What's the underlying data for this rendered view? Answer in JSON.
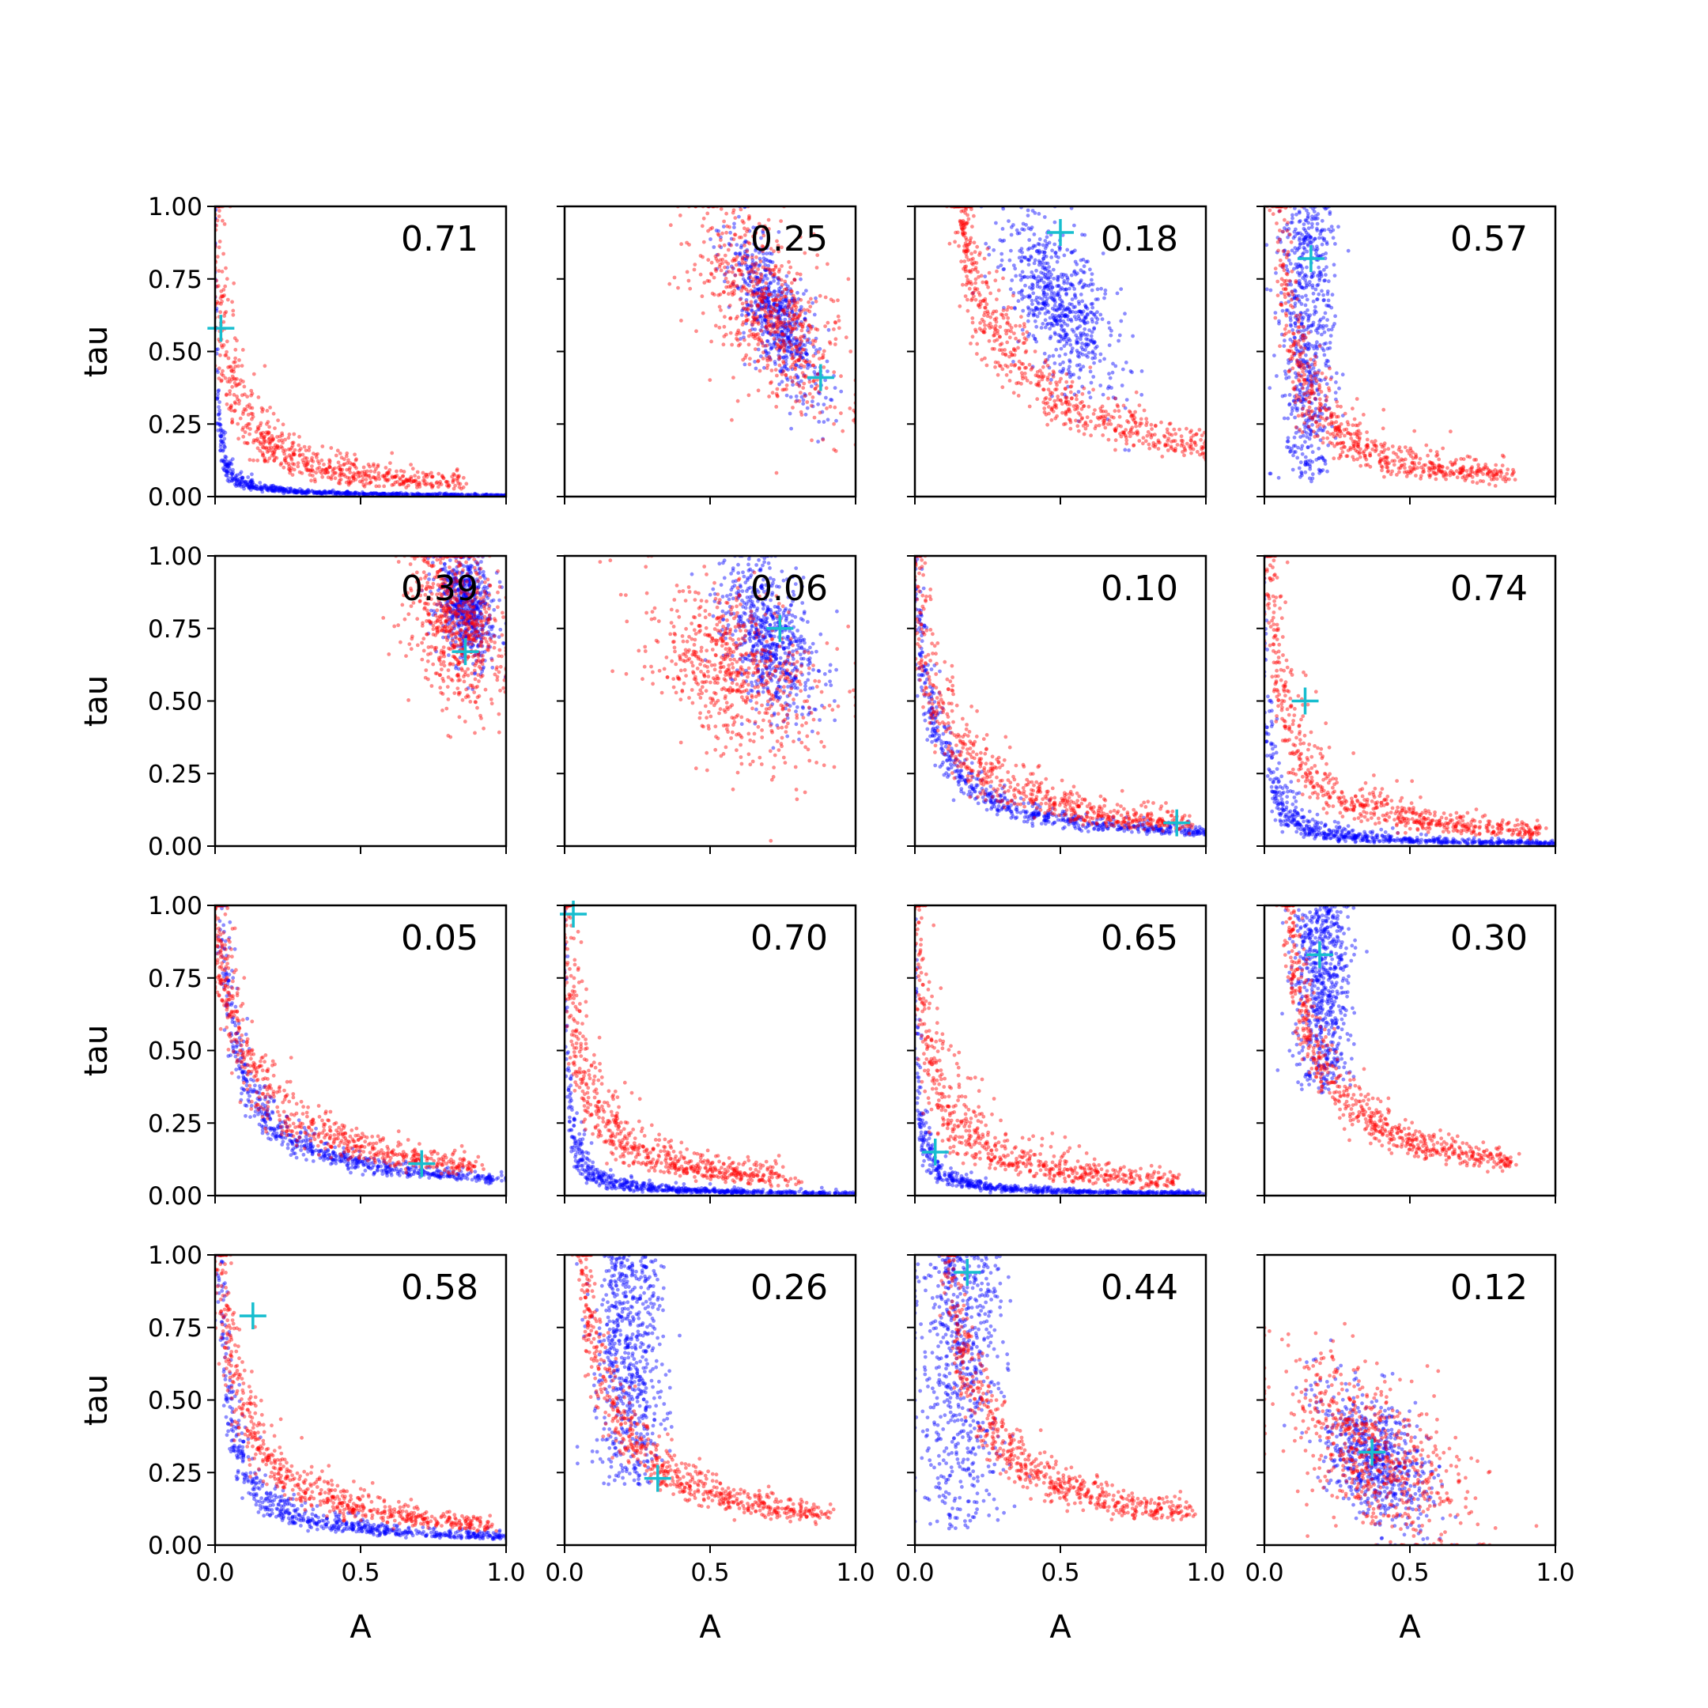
{
  "chart_data": {
    "type": "scatter",
    "layout": "4x4 grid",
    "xlabel": "A",
    "ylabel": "tau",
    "xlim": [
      0.0,
      1.0
    ],
    "ylim": [
      0.0,
      1.0
    ],
    "xticks": [
      "0.0",
      "0.5",
      "1.0"
    ],
    "yticks": [
      "0.00",
      "0.25",
      "0.50",
      "0.75",
      "1.00"
    ],
    "grid": false,
    "colors": {
      "series_1": "#0000ff",
      "series_2": "#ff0000",
      "marker": "#17becf"
    },
    "panels": [
      {
        "annotation": "0.71",
        "marker": {
          "x": 0.02,
          "y": 0.58
        },
        "series": [
          {
            "color": "#0000ff",
            "shape": "hyperbolic",
            "a": 0.005,
            "x0": 0.0,
            "xmax": 1.0,
            "spread": 0.5
          },
          {
            "color": "#ff0000",
            "shape": "hyperbolic",
            "a": 0.04,
            "x0": 0.0,
            "xmax": 0.85,
            "spread": 0.6
          }
        ]
      },
      {
        "annotation": "0.25",
        "marker": {
          "x": 0.88,
          "y": 0.41
        },
        "series": [
          {
            "color": "#0000ff",
            "shape": "blob",
            "cx": 0.72,
            "cy": 0.63,
            "sx": 0.08,
            "sy": 0.15,
            "rho": -0.75
          },
          {
            "color": "#ff0000",
            "shape": "blob",
            "cx": 0.7,
            "cy": 0.65,
            "sx": 0.13,
            "sy": 0.18,
            "rho": -0.6
          }
        ]
      },
      {
        "annotation": "0.18",
        "marker": {
          "x": 0.5,
          "y": 0.91
        },
        "series": [
          {
            "color": "#0000ff",
            "shape": "blob",
            "cx": 0.5,
            "cy": 0.65,
            "sx": 0.1,
            "sy": 0.15,
            "rho": -0.55
          },
          {
            "color": "#ff0000",
            "shape": "hyperbolic",
            "a": 0.18,
            "x0": 0.15,
            "xmax": 1.0,
            "spread": 0.3
          }
        ]
      },
      {
        "annotation": "0.57",
        "marker": {
          "x": 0.16,
          "y": 0.82
        },
        "series": [
          {
            "color": "#0000ff",
            "shape": "column",
            "cx": 0.15,
            "sx": 0.05,
            "ymin": 0.05,
            "ymax": 1.0
          },
          {
            "color": "#ff0000",
            "shape": "hyperbolic",
            "a": 0.06,
            "x0": 0.05,
            "xmax": 0.85,
            "spread": 0.5
          }
        ]
      },
      {
        "annotation": "0.39",
        "marker": {
          "x": 0.86,
          "y": 0.67
        },
        "series": [
          {
            "color": "#0000ff",
            "shape": "blob",
            "cx": 0.86,
            "cy": 0.83,
            "sx": 0.05,
            "sy": 0.1,
            "rho": -0.3
          },
          {
            "color": "#ff0000",
            "shape": "blob",
            "cx": 0.83,
            "cy": 0.78,
            "sx": 0.08,
            "sy": 0.15,
            "rho": -0.3
          }
        ]
      },
      {
        "annotation": "0.06",
        "marker": {
          "x": 0.74,
          "y": 0.75
        },
        "series": [
          {
            "color": "#0000ff",
            "shape": "blob",
            "cx": 0.7,
            "cy": 0.72,
            "sx": 0.08,
            "sy": 0.13,
            "rho": -0.4
          },
          {
            "color": "#ff0000",
            "shape": "blob",
            "cx": 0.6,
            "cy": 0.6,
            "sx": 0.15,
            "sy": 0.15,
            "rho": -0.4
          }
        ]
      },
      {
        "annotation": "0.10",
        "marker": {
          "x": 0.9,
          "y": 0.08
        },
        "series": [
          {
            "color": "#0000ff",
            "shape": "hyperbolic",
            "a": 0.05,
            "x0": 0.0,
            "xmax": 1.0,
            "spread": 0.35
          },
          {
            "color": "#ff0000",
            "shape": "hyperbolic",
            "a": 0.08,
            "x0": 0.0,
            "xmax": 0.95,
            "spread": 0.45
          }
        ]
      },
      {
        "annotation": "0.74",
        "marker": {
          "x": 0.14,
          "y": 0.5
        },
        "series": [
          {
            "color": "#0000ff",
            "shape": "hyperbolic",
            "a": 0.01,
            "x0": 0.0,
            "xmax": 1.0,
            "spread": 0.7
          },
          {
            "color": "#ff0000",
            "shape": "hyperbolic",
            "a": 0.05,
            "x0": 0.02,
            "xmax": 0.95,
            "spread": 0.55
          }
        ]
      },
      {
        "annotation": "0.05",
        "marker": {
          "x": 0.71,
          "y": 0.11
        },
        "series": [
          {
            "color": "#0000ff",
            "shape": "hyperbolic",
            "a": 0.06,
            "x0": 0.02,
            "xmax": 1.0,
            "spread": 0.3
          },
          {
            "color": "#ff0000",
            "shape": "hyperbolic",
            "a": 0.1,
            "x0": 0.0,
            "xmax": 0.9,
            "spread": 0.35
          }
        ]
      },
      {
        "annotation": "0.70",
        "marker": {
          "x": 0.03,
          "y": 0.97
        },
        "series": [
          {
            "color": "#0000ff",
            "shape": "hyperbolic",
            "a": 0.008,
            "x0": 0.0,
            "xmax": 1.0,
            "spread": 0.6
          },
          {
            "color": "#ff0000",
            "shape": "hyperbolic",
            "a": 0.05,
            "x0": 0.0,
            "xmax": 0.8,
            "spread": 0.55
          }
        ]
      },
      {
        "annotation": "0.65",
        "marker": {
          "x": 0.07,
          "y": 0.15
        },
        "series": [
          {
            "color": "#0000ff",
            "shape": "hyperbolic",
            "a": 0.008,
            "x0": 0.0,
            "xmax": 1.0,
            "spread": 0.6
          },
          {
            "color": "#ff0000",
            "shape": "hyperbolic",
            "a": 0.05,
            "x0": 0.0,
            "xmax": 0.9,
            "spread": 0.6
          }
        ]
      },
      {
        "annotation": "0.30",
        "marker": {
          "x": 0.19,
          "y": 0.83
        },
        "series": [
          {
            "color": "#0000ff",
            "shape": "column",
            "cx": 0.2,
            "sx": 0.05,
            "ymin": 0.35,
            "ymax": 1.0
          },
          {
            "color": "#ff0000",
            "shape": "hyperbolic",
            "a": 0.1,
            "x0": 0.08,
            "xmax": 0.85,
            "spread": 0.3
          }
        ]
      },
      {
        "annotation": "0.58",
        "marker": {
          "x": 0.13,
          "y": 0.79
        },
        "series": [
          {
            "color": "#0000ff",
            "shape": "hyperbolic",
            "a": 0.03,
            "x0": 0.02,
            "xmax": 1.0,
            "spread": 0.45
          },
          {
            "color": "#ff0000",
            "shape": "hyperbolic",
            "a": 0.07,
            "x0": 0.02,
            "xmax": 0.95,
            "spread": 0.4
          }
        ]
      },
      {
        "annotation": "0.26",
        "marker": {
          "x": 0.32,
          "y": 0.23
        },
        "series": [
          {
            "color": "#0000ff",
            "shape": "column",
            "cx": 0.22,
            "sx": 0.06,
            "ymin": 0.2,
            "ymax": 1.0
          },
          {
            "color": "#ff0000",
            "shape": "hyperbolic",
            "a": 0.1,
            "x0": 0.06,
            "xmax": 0.9,
            "spread": 0.35
          }
        ]
      },
      {
        "annotation": "0.44",
        "marker": {
          "x": 0.18,
          "y": 0.94
        },
        "series": [
          {
            "color": "#0000ff",
            "shape": "column",
            "cx": 0.16,
            "sx": 0.07,
            "ymin": 0.05,
            "ymax": 1.0
          },
          {
            "color": "#ff0000",
            "shape": "hyperbolic",
            "a": 0.1,
            "x0": 0.12,
            "xmax": 0.95,
            "spread": 0.35
          }
        ]
      },
      {
        "annotation": "0.12",
        "marker": {
          "x": 0.37,
          "y": 0.32
        },
        "series": [
          {
            "color": "#0000ff",
            "shape": "blob",
            "cx": 0.38,
            "cy": 0.3,
            "sx": 0.1,
            "sy": 0.12,
            "rho": -0.5
          },
          {
            "color": "#ff0000",
            "shape": "blob",
            "cx": 0.38,
            "cy": 0.32,
            "sx": 0.16,
            "sy": 0.16,
            "rho": -0.55
          }
        ]
      }
    ]
  }
}
